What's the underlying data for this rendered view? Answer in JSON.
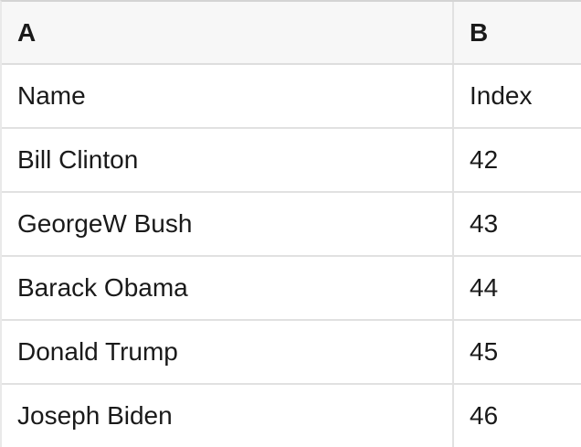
{
  "table": {
    "column_headers": [
      "A",
      "B"
    ],
    "rows": [
      [
        "Name",
        "Index"
      ],
      [
        "Bill Clinton",
        42
      ],
      [
        "GeorgeW Bush",
        43
      ],
      [
        "Barack Obama",
        44
      ],
      [
        "Donald Trump",
        45
      ],
      [
        "Joseph Biden",
        46
      ]
    ]
  },
  "colors": {
    "header_background": "#f7f7f7",
    "row_background": "#ffffff",
    "grid_line": "#e1e1e1",
    "top_border": "#d4d4d4",
    "text": "#1a1a1a"
  }
}
